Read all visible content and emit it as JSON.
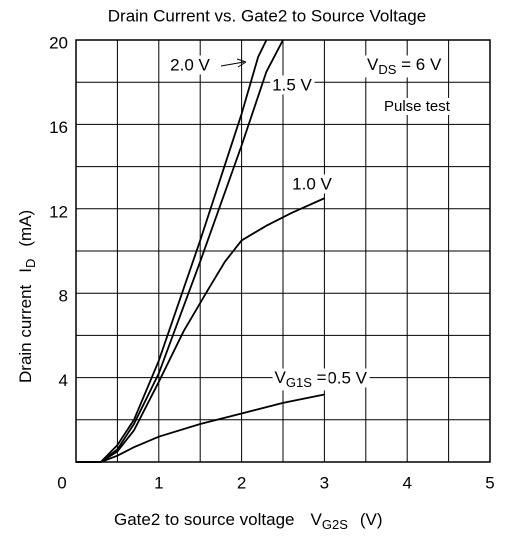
{
  "chart_data": {
    "type": "line",
    "title": "Drain Current vs. Gate2 to Source Voltage",
    "x_label": {
      "text": "Gate2 to source voltage",
      "symbol": "V",
      "sub": "G2S",
      "unit": "(V)"
    },
    "y_label": {
      "text": "Drain current",
      "symbol": "I",
      "sub": "D",
      "unit": "(mA)"
    },
    "xlim": [
      0,
      5
    ],
    "ylim": [
      0,
      20
    ],
    "xticks": [
      0,
      1,
      2,
      3,
      4,
      5
    ],
    "yticks": [
      4,
      8,
      12,
      16,
      20
    ],
    "minor_xticks": [
      0.5,
      1.5,
      2.5,
      3.5,
      4.5
    ],
    "minor_yticks": [
      2,
      6,
      10,
      14,
      18
    ],
    "grid": true,
    "series": [
      {
        "name": "0.5 V",
        "color": "#000000",
        "x": [
          0,
          0.3,
          0.5,
          0.7,
          1,
          1.5,
          2,
          2.5,
          3
        ],
        "values": [
          0,
          0,
          0.3,
          0.7,
          1.2,
          1.8,
          2.3,
          2.8,
          3.2
        ]
      },
      {
        "name": "1.0 V",
        "color": "#000000",
        "x": [
          0,
          0.3,
          0.5,
          0.7,
          1,
          1.3,
          1.6,
          1.8,
          2,
          2.3,
          2.6,
          3
        ],
        "values": [
          0,
          0,
          0.5,
          1.5,
          3.8,
          6.2,
          8.2,
          9.5,
          10.5,
          11.2,
          11.8,
          12.5
        ]
      },
      {
        "name": "1.5 V",
        "color": "#000000",
        "x": [
          0,
          0.3,
          0.5,
          0.7,
          1,
          1.5,
          2,
          2.3,
          2.5
        ],
        "values": [
          0,
          0,
          0.6,
          1.8,
          4.2,
          9.5,
          15,
          18.5,
          20
        ]
      },
      {
        "name": "2.0 V",
        "color": "#000000",
        "x": [
          0,
          0.3,
          0.5,
          0.7,
          1,
          1.5,
          2,
          2.2,
          2.3
        ],
        "values": [
          0,
          0,
          0.8,
          2,
          4.8,
          10.5,
          16.5,
          19.2,
          20
        ]
      }
    ],
    "param": {
      "symbol": "V",
      "sub": "G1S",
      "eq": " = "
    },
    "condition": {
      "symbol": "V",
      "sub": "DS",
      "rest": " = 6 V"
    },
    "note": "Pulse test"
  }
}
